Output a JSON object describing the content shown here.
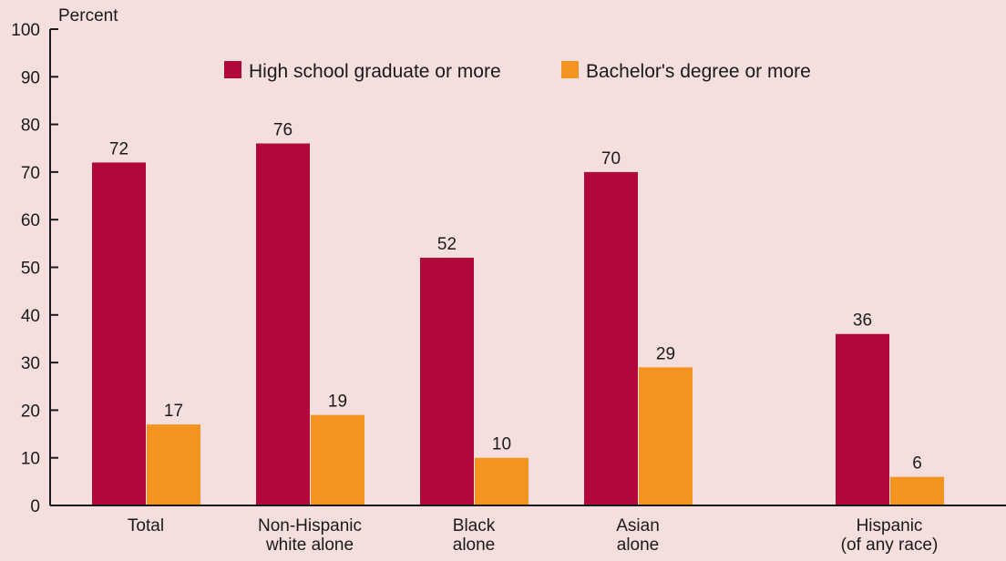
{
  "chart_data": {
    "type": "bar",
    "ylabel": "Percent",
    "ylim": [
      0,
      100
    ],
    "yticks": [
      0,
      10,
      20,
      30,
      40,
      50,
      60,
      70,
      80,
      90,
      100
    ],
    "grid": false,
    "legend_position": "top",
    "categories": [
      [
        "Total"
      ],
      [
        "Non-Hispanic",
        "white alone"
      ],
      [
        "Black",
        "alone"
      ],
      [
        "Asian",
        "alone"
      ],
      [
        "Hispanic",
        "(of any race)"
      ]
    ],
    "series": [
      {
        "name": "High school graduate or more",
        "color": "#b0083a",
        "values": [
          72,
          76,
          52,
          70,
          36
        ]
      },
      {
        "name": "Bachelor's degree or more",
        "color": "#f39320",
        "values": [
          17,
          19,
          10,
          29,
          6
        ]
      }
    ]
  }
}
